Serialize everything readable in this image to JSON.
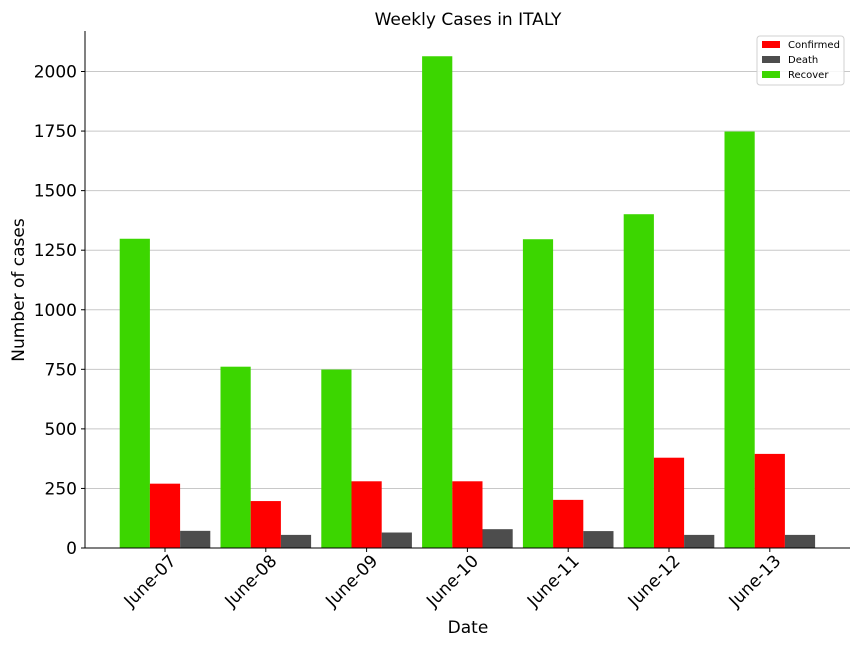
{
  "chart_data": {
    "type": "bar",
    "title": "Weekly Cases in ITALY",
    "xlabel": "Date",
    "ylabel": "Number of cases",
    "categories": [
      "June-07",
      "June-08",
      "June-09",
      "June-10",
      "June-11",
      "June-12",
      "June-13"
    ],
    "ylim": [
      0,
      2170
    ],
    "yticks": [
      0,
      250,
      500,
      750,
      1000,
      1250,
      1500,
      1750,
      2000
    ],
    "grid": "horizontal",
    "legend_position": "top-right",
    "series": [
      {
        "name": "Recover",
        "color": "#3cd600",
        "values": [
          1298,
          761,
          749,
          2064,
          1296,
          1401,
          1748
        ]
      },
      {
        "name": "Confirmed",
        "color": "#ff0000",
        "values": [
          270,
          197,
          280,
          280,
          202,
          379,
          395
        ]
      },
      {
        "name": "Death",
        "color": "#4d4d4d",
        "values": [
          72,
          55,
          65,
          79,
          71,
          55,
          55
        ]
      }
    ],
    "legend_order": [
      "Confirmed",
      "Death",
      "Recover"
    ]
  }
}
